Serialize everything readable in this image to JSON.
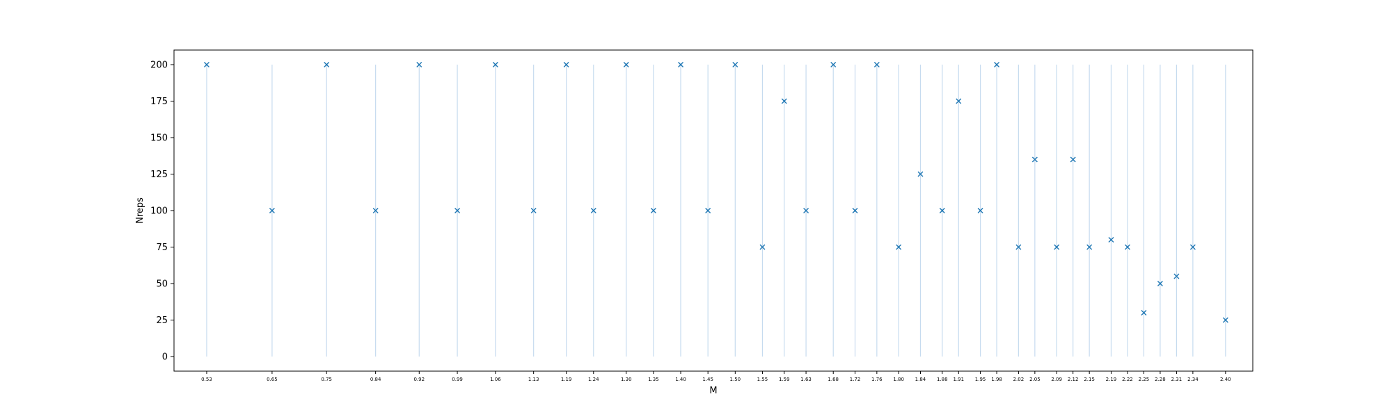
{
  "chart_data": {
    "type": "scatter",
    "xlabel": "M",
    "ylabel": "Nreps",
    "ylim": [
      -10,
      210
    ],
    "xlim": [
      0.47,
      2.45
    ],
    "yticks": [
      0,
      25,
      50,
      75,
      100,
      125,
      150,
      175,
      200
    ],
    "xtick_labels": [
      "0.53",
      "0.65",
      "0.75",
      "0.84",
      "0.92",
      "0.99",
      "1.06",
      "1.13",
      "1.19",
      "1.24",
      "1.30",
      "1.35",
      "1.40",
      "1.45",
      "1.50",
      "1.55",
      "1.59",
      "1.63",
      "1.68",
      "1.72",
      "1.76",
      "1.80",
      "1.84",
      "1.88",
      "1.91",
      "1.95",
      "1.98",
      "2.02",
      "2.05",
      "2.09",
      "2.12",
      "2.15",
      "2.19",
      "2.22",
      "2.25",
      "2.28",
      "2.31",
      "2.34",
      "2.40"
    ],
    "x": [
      0.53,
      0.65,
      0.75,
      0.84,
      0.92,
      0.99,
      1.06,
      1.13,
      1.19,
      1.24,
      1.3,
      1.35,
      1.4,
      1.45,
      1.5,
      1.55,
      1.59,
      1.63,
      1.68,
      1.72,
      1.76,
      1.8,
      1.84,
      1.88,
      1.91,
      1.95,
      1.98,
      2.02,
      2.05,
      2.09,
      2.12,
      2.15,
      2.19,
      2.22,
      2.25,
      2.28,
      2.31,
      2.34,
      2.4
    ],
    "y": [
      200,
      100,
      200,
      100,
      200,
      100,
      200,
      100,
      200,
      100,
      200,
      100,
      200,
      100,
      200,
      75,
      175,
      100,
      200,
      100,
      200,
      75,
      125,
      100,
      175,
      100,
      200,
      75,
      135,
      75,
      135,
      75,
      80,
      75,
      30,
      50,
      55,
      75,
      25
    ],
    "marker": "x",
    "vertical_guides": true,
    "grid": false,
    "colors": {
      "marker": "#1f77b4",
      "guide": "#c6dbef"
    }
  }
}
